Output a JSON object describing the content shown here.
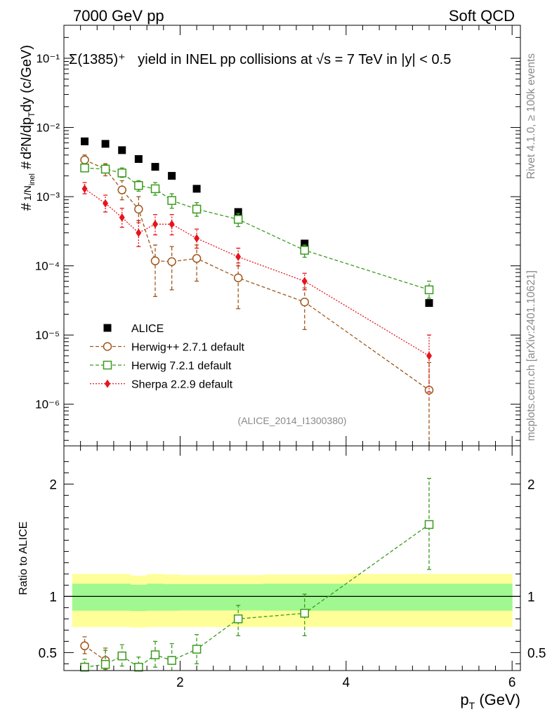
{
  "header": {
    "energy_label": "7000 GeV pp",
    "category_label": "Soft QCD",
    "title_particle": "Σ(1385)⁺",
    "title_text": "yield in INEL pp collisions at √s = 7 TeV in |y| < 0.5",
    "analysis_id": "(ALICE_2014_I1300380)"
  },
  "side_labels": {
    "rivet": "Rivet 4.1.0, ≥ 100k events",
    "mcplots": "mcplots.cern.ch [arXiv:2401.10621]"
  },
  "chart_data": [
    {
      "type": "scatter",
      "title": "Σ(1385)⁺ yield in INEL pp collisions at √s = 7 TeV in |y| < 0.5",
      "ylabel": "1/N_inel d²N/dp_T dy (c/GeV)",
      "xlabel": "p_T (GeV)",
      "yscale": "log",
      "xlim": [
        0.6,
        6.1
      ],
      "ylim": [
        2.5e-07,
        0.3
      ],
      "yticks": [
        {
          "value": 1e-06,
          "label": "10⁻⁶"
        },
        {
          "value": 1e-05,
          "label": "10⁻⁵"
        },
        {
          "value": 0.0001,
          "label": "10⁻⁴"
        },
        {
          "value": 0.001,
          "label": "10⁻³"
        },
        {
          "value": 0.01,
          "label": "10⁻²"
        },
        {
          "value": 0.1,
          "label": "10⁻¹"
        }
      ],
      "legend_position": "lower-left",
      "series": [
        {
          "name": "ALICE",
          "color": "#000000",
          "marker": "filled-square",
          "line": "none",
          "points": [
            {
              "x": 0.85,
              "y": 0.0063
            },
            {
              "x": 1.1,
              "y": 0.0058
            },
            {
              "x": 1.3,
              "y": 0.0047
            },
            {
              "x": 1.5,
              "y": 0.0035
            },
            {
              "x": 1.7,
              "y": 0.0027
            },
            {
              "x": 1.9,
              "y": 0.002
            },
            {
              "x": 2.2,
              "y": 0.0013
            },
            {
              "x": 2.7,
              "y": 0.0006
            },
            {
              "x": 3.5,
              "y": 0.00021
            },
            {
              "x": 5.0,
              "y": 2.9e-05
            }
          ]
        },
        {
          "name": "Herwig++ 2.7.1 default",
          "color": "#a0561b",
          "marker": "open-circle",
          "line": "dashed",
          "points": [
            {
              "x": 0.85,
              "y": 0.0034,
              "lo": 0.0029,
              "hi": 0.004
            },
            {
              "x": 1.1,
              "y": 0.0025,
              "lo": 0.002,
              "hi": 0.003
            },
            {
              "x": 1.3,
              "y": 0.00125,
              "lo": 0.0009,
              "hi": 0.0017
            },
            {
              "x": 1.5,
              "y": 0.00066,
              "lo": 0.00042,
              "hi": 0.001
            },
            {
              "x": 1.7,
              "y": 0.000118,
              "lo": 3.6e-05,
              "hi": 0.0002
            },
            {
              "x": 1.9,
              "y": 0.000115,
              "lo": 4.5e-05,
              "hi": 0.00019
            },
            {
              "x": 2.2,
              "y": 0.000128,
              "lo": 6e-05,
              "hi": 0.0002
            },
            {
              "x": 2.7,
              "y": 6.7e-05,
              "lo": 2.4e-05,
              "hi": 0.00011
            },
            {
              "x": 3.5,
              "y": 3e-05,
              "lo": 1.2e-05,
              "hi": 4.8e-05
            },
            {
              "x": 5.0,
              "y": 1.6e-06,
              "lo": 2.5e-07,
              "hi": 4e-06
            }
          ]
        },
        {
          "name": "Herwig 7.2.1 default",
          "color": "#3a9a1e",
          "marker": "open-square",
          "line": "dashed",
          "points": [
            {
              "x": 0.85,
              "y": 0.0026,
              "lo": 0.0023,
              "hi": 0.003
            },
            {
              "x": 1.1,
              "y": 0.0025,
              "lo": 0.0022,
              "hi": 0.0029
            },
            {
              "x": 1.3,
              "y": 0.0022,
              "lo": 0.0019,
              "hi": 0.0026
            },
            {
              "x": 1.5,
              "y": 0.00145,
              "lo": 0.0012,
              "hi": 0.0017
            },
            {
              "x": 1.7,
              "y": 0.0013,
              "lo": 0.00105,
              "hi": 0.0016
            },
            {
              "x": 1.9,
              "y": 0.00088,
              "lo": 0.00068,
              "hi": 0.0011
            },
            {
              "x": 2.2,
              "y": 0.00066,
              "lo": 0.00052,
              "hi": 0.00082
            },
            {
              "x": 2.7,
              "y": 0.00047,
              "lo": 0.00037,
              "hi": 0.00057
            },
            {
              "x": 3.5,
              "y": 0.000168,
              "lo": 0.000133,
              "hi": 0.0002
            },
            {
              "x": 5.0,
              "y": 4.5e-05,
              "lo": 3.4e-05,
              "hi": 6e-05
            }
          ]
        },
        {
          "name": "Sherpa 2.2.9 default",
          "color": "#e8131b",
          "marker": "filled-diamond",
          "line": "dotted",
          "points": [
            {
              "x": 0.85,
              "y": 0.0013,
              "lo": 0.0011,
              "hi": 0.0016
            },
            {
              "x": 1.1,
              "y": 0.0008,
              "lo": 0.0006,
              "hi": 0.00105
            },
            {
              "x": 1.3,
              "y": 0.0005,
              "lo": 0.00036,
              "hi": 0.00068
            },
            {
              "x": 1.5,
              "y": 0.0003,
              "lo": 0.00019,
              "hi": 0.00045
            },
            {
              "x": 1.7,
              "y": 0.0004,
              "lo": 0.00028,
              "hi": 0.00055
            },
            {
              "x": 1.9,
              "y": 0.0004,
              "lo": 0.00028,
              "hi": 0.00055
            },
            {
              "x": 2.2,
              "y": 0.00025,
              "lo": 0.00018,
              "hi": 0.00034
            },
            {
              "x": 2.7,
              "y": 0.000135,
              "lo": 0.0001,
              "hi": 0.00018
            },
            {
              "x": 3.5,
              "y": 6e-05,
              "lo": 4.5e-05,
              "hi": 7.8e-05
            },
            {
              "x": 5.0,
              "y": 5e-06,
              "lo": 1.5e-06,
              "hi": 1e-05
            }
          ]
        }
      ]
    },
    {
      "type": "scatter",
      "ylabel": "Ratio to ALICE",
      "xlabel": "p_T (GeV)",
      "yscale": "linear",
      "xlim": [
        0.6,
        6.1
      ],
      "ylim": [
        0.34,
        2.34
      ],
      "xticks": [
        {
          "value": 2,
          "label": "2"
        },
        {
          "value": 4,
          "label": "4"
        },
        {
          "value": 6,
          "label": "6"
        }
      ],
      "yticks": [
        {
          "value": 0.5,
          "label": "0.5"
        },
        {
          "value": 1,
          "label": "1"
        },
        {
          "value": 2,
          "label": "2"
        }
      ],
      "reference_line": 1,
      "bands": [
        {
          "name": "stat",
          "color": "#a0f890",
          "bins": [
            {
              "x0": 0.7,
              "x1": 1.0,
              "lo": 0.873,
              "hi": 1.113
            },
            {
              "x0": 1.0,
              "x1": 1.2,
              "lo": 0.873,
              "hi": 1.113
            },
            {
              "x0": 1.2,
              "x1": 1.4,
              "lo": 0.873,
              "hi": 1.113
            },
            {
              "x0": 1.4,
              "x1": 1.6,
              "lo": 0.87,
              "hi": 1.105
            },
            {
              "x0": 1.6,
              "x1": 1.8,
              "lo": 0.873,
              "hi": 1.113
            },
            {
              "x0": 1.8,
              "x1": 2.0,
              "lo": 0.873,
              "hi": 1.11
            },
            {
              "x0": 2.0,
              "x1": 2.4,
              "lo": 0.875,
              "hi": 1.11
            },
            {
              "x0": 2.4,
              "x1": 3.0,
              "lo": 0.875,
              "hi": 1.11
            },
            {
              "x0": 3.0,
              "x1": 4.0,
              "lo": 0.873,
              "hi": 1.113
            },
            {
              "x0": 4.0,
              "x1": 6.0,
              "lo": 0.873,
              "hi": 1.113
            }
          ]
        },
        {
          "name": "total",
          "color": "#ffff99",
          "bins": [
            {
              "x0": 0.7,
              "x1": 1.0,
              "lo": 0.728,
              "hi": 1.2
            },
            {
              "x0": 1.0,
              "x1": 1.2,
              "lo": 0.728,
              "hi": 1.2
            },
            {
              "x0": 1.2,
              "x1": 1.4,
              "lo": 0.728,
              "hi": 1.2
            },
            {
              "x0": 1.4,
              "x1": 1.6,
              "lo": 0.723,
              "hi": 1.185
            },
            {
              "x0": 1.6,
              "x1": 1.8,
              "lo": 0.728,
              "hi": 1.2
            },
            {
              "x0": 1.8,
              "x1": 2.0,
              "lo": 0.728,
              "hi": 1.195
            },
            {
              "x0": 2.0,
              "x1": 2.4,
              "lo": 0.728,
              "hi": 1.19
            },
            {
              "x0": 2.4,
              "x1": 3.0,
              "lo": 0.728,
              "hi": 1.19
            },
            {
              "x0": 3.0,
              "x1": 4.0,
              "lo": 0.728,
              "hi": 1.195
            },
            {
              "x0": 4.0,
              "x1": 6.0,
              "lo": 0.728,
              "hi": 1.2
            }
          ]
        }
      ],
      "series": [
        {
          "name": "Herwig++ 2.7.1 default",
          "color": "#a0561b",
          "marker": "open-circle",
          "line": "dashed",
          "points": [
            {
              "x": 0.85,
              "y": 0.56,
              "lo": 0.49,
              "hi": 0.64
            },
            {
              "x": 1.1,
              "y": 0.43,
              "lo": 0.35,
              "hi": 0.54
            }
          ]
        },
        {
          "name": "Herwig 7.2.1 default",
          "color": "#3a9a1e",
          "marker": "open-square",
          "line": "dashed",
          "points": [
            {
              "x": 0.85,
              "y": 0.37,
              "lo": 0.34,
              "hi": 0.44
            },
            {
              "x": 1.1,
              "y": 0.395,
              "lo": 0.34,
              "hi": 0.52
            },
            {
              "x": 1.3,
              "y": 0.47,
              "lo": 0.38,
              "hi": 0.57
            },
            {
              "x": 1.5,
              "y": 0.37,
              "lo": 0.34,
              "hi": 0.46
            },
            {
              "x": 1.7,
              "y": 0.48,
              "lo": 0.37,
              "hi": 0.6
            },
            {
              "x": 1.9,
              "y": 0.43,
              "lo": 0.34,
              "hi": 0.58
            },
            {
              "x": 2.2,
              "y": 0.53,
              "lo": 0.4,
              "hi": 0.66
            },
            {
              "x": 2.7,
              "y": 0.8,
              "lo": 0.65,
              "hi": 0.92
            },
            {
              "x": 3.5,
              "y": 0.85,
              "lo": 0.65,
              "hi": 1.02
            },
            {
              "x": 5.0,
              "y": 1.64,
              "lo": 1.24,
              "hi": 2.05
            }
          ]
        }
      ]
    }
  ]
}
